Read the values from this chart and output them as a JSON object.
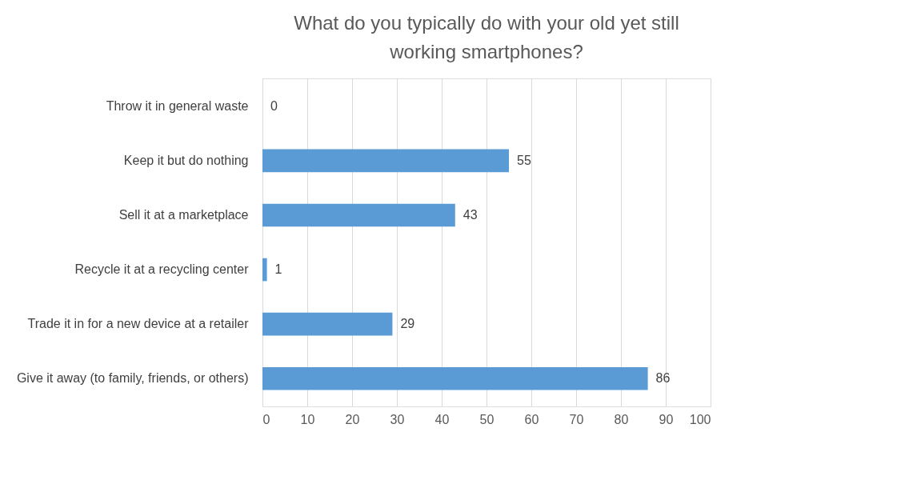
{
  "chart_data": {
    "type": "bar",
    "orientation": "horizontal",
    "title": "What do you typically do with your old yet still working smartphones?",
    "categories": [
      "Throw it in general waste",
      "Keep it but do nothing",
      "Sell it at a marketplace",
      "Recycle it at a recycling center",
      "Trade it in for a new device at a retailer",
      "Give it away (to family, friends, or others)"
    ],
    "values": [
      0,
      55,
      43,
      1,
      29,
      86
    ],
    "color": "#5b9bd5",
    "xlim": [
      0,
      100
    ],
    "xticks": [
      0,
      10,
      20,
      30,
      40,
      50,
      60,
      70,
      80,
      90,
      100
    ],
    "grid": "x",
    "data_labels": true
  }
}
